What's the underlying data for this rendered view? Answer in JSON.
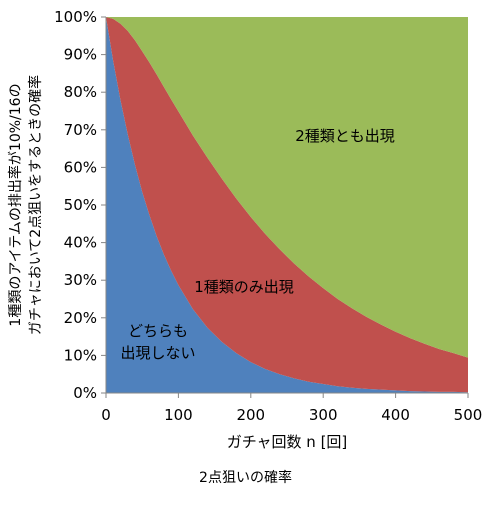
{
  "caption": "2点狙いの確率",
  "chart_data": {
    "type": "area",
    "stacked": true,
    "xlabel": "ガチャ回数 n [回]",
    "ylabel_lines": [
      "1種類のアイテムの排出率が10%/16の",
      "ガチャにおいて2点狙いをするときの確率"
    ],
    "xlim": [
      0,
      500
    ],
    "ylim": [
      0,
      100
    ],
    "x_ticks": [
      0,
      100,
      200,
      300,
      400,
      500
    ],
    "x_tick_labels": [
      "0",
      "100",
      "200",
      "300",
      "400",
      "500"
    ],
    "y_ticks": [
      0,
      10,
      20,
      30,
      40,
      50,
      60,
      70,
      80,
      90,
      100
    ],
    "y_tick_labels": [
      "0%",
      "10%",
      "20%",
      "30%",
      "40%",
      "50%",
      "60%",
      "70%",
      "80%",
      "90%",
      "100%"
    ],
    "grid": false,
    "legend": "none",
    "x": [
      0,
      10,
      20,
      30,
      40,
      50,
      60,
      70,
      80,
      90,
      100,
      120,
      140,
      160,
      180,
      200,
      220,
      240,
      260,
      280,
      300,
      320,
      340,
      360,
      380,
      400,
      420,
      440,
      460,
      480,
      500
    ],
    "series": [
      {
        "label_lines": [
          "どちらも",
          "出現しない"
        ],
        "color": "#4f81bd",
        "values": [
          100,
          88.2,
          77.9,
          68.8,
          60.7,
          53.5,
          47.3,
          41.7,
          36.8,
          32.5,
          28.7,
          22.3,
          17.4,
          13.6,
          10.6,
          8.2,
          6.4,
          5.0,
          3.9,
          3.0,
          2.4,
          1.8,
          1.4,
          1.1,
          0.9,
          0.7,
          0.5,
          0.4,
          0.3,
          0.3,
          0.2
        ]
      },
      {
        "label_lines": [
          "1種類のみ出現"
        ],
        "color": "#c0504d",
        "values": [
          0,
          11.3,
          20.3,
          27.5,
          33.1,
          37.4,
          40.6,
          43.0,
          44.6,
          45.6,
          46.2,
          46.2,
          45.2,
          43.4,
          41.1,
          38.6,
          35.9,
          33.2,
          30.5,
          28.0,
          25.5,
          23.2,
          21.1,
          19.1,
          17.3,
          15.6,
          14.1,
          12.7,
          11.4,
          10.3,
          9.2
        ]
      },
      {
        "label_lines": [
          "2種類とも出現"
        ],
        "color": "#9bbb59",
        "values": [
          0,
          0.5,
          1.8,
          3.7,
          6.2,
          9.1,
          12.1,
          15.3,
          18.6,
          21.9,
          25.1,
          31.5,
          37.4,
          43.0,
          48.3,
          53.2,
          57.7,
          61.8,
          65.6,
          69.0,
          72.1,
          75.0,
          77.5,
          79.8,
          81.8,
          83.7,
          85.4,
          86.9,
          88.3,
          89.4,
          90.6
        ]
      }
    ]
  }
}
